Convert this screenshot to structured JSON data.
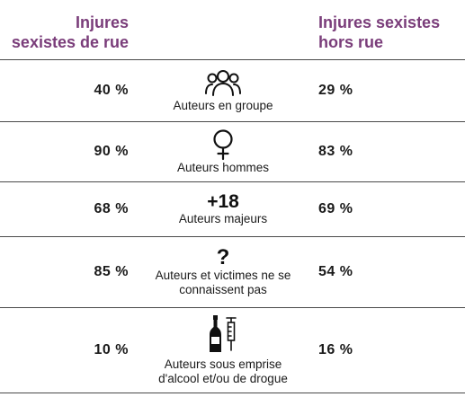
{
  "header": {
    "left": "Injures\nsexistes de rue",
    "right": "Injures sexistes\nhors rue"
  },
  "rows": [
    {
      "label": "Auteurs en groupe",
      "icon": "group-icon",
      "left": "40 %",
      "right": "29 %"
    },
    {
      "label": "Auteurs  hommes",
      "icon": "male-symbol-icon",
      "left": "90 %",
      "right": "83 %"
    },
    {
      "label": "Auteurs  majeurs",
      "icon_text": "+18",
      "left": "68 %",
      "right": "69 %"
    },
    {
      "label": "Auteurs et victimes ne se\nconnaissent pas",
      "icon_text": "?",
      "left": "85 %",
      "right": "54 %"
    },
    {
      "label": "Auteurs sous emprise\nd'alcool et/ou de drogue",
      "icon": "bottle-syringe-icon",
      "left": "10 %",
      "right": "16 %"
    }
  ],
  "chart_data": {
    "type": "table",
    "columns": [
      "Injures sexistes de rue",
      "Injures sexistes hors rue"
    ],
    "categories": [
      "Auteurs en groupe",
      "Auteurs hommes",
      "Auteurs majeurs",
      "Auteurs et victimes ne se connaissent pas",
      "Auteurs sous emprise d'alcool et/ou de drogue"
    ],
    "series": [
      {
        "name": "Injures sexistes de rue",
        "values": [
          40,
          90,
          68,
          85,
          10
        ]
      },
      {
        "name": "Injures sexistes hors rue",
        "values": [
          29,
          83,
          69,
          54,
          16
        ]
      }
    ],
    "unit": "%"
  },
  "colors": {
    "header": "#7a3d7a",
    "text": "#1a1a1a",
    "rule": "#4a4a4a"
  }
}
